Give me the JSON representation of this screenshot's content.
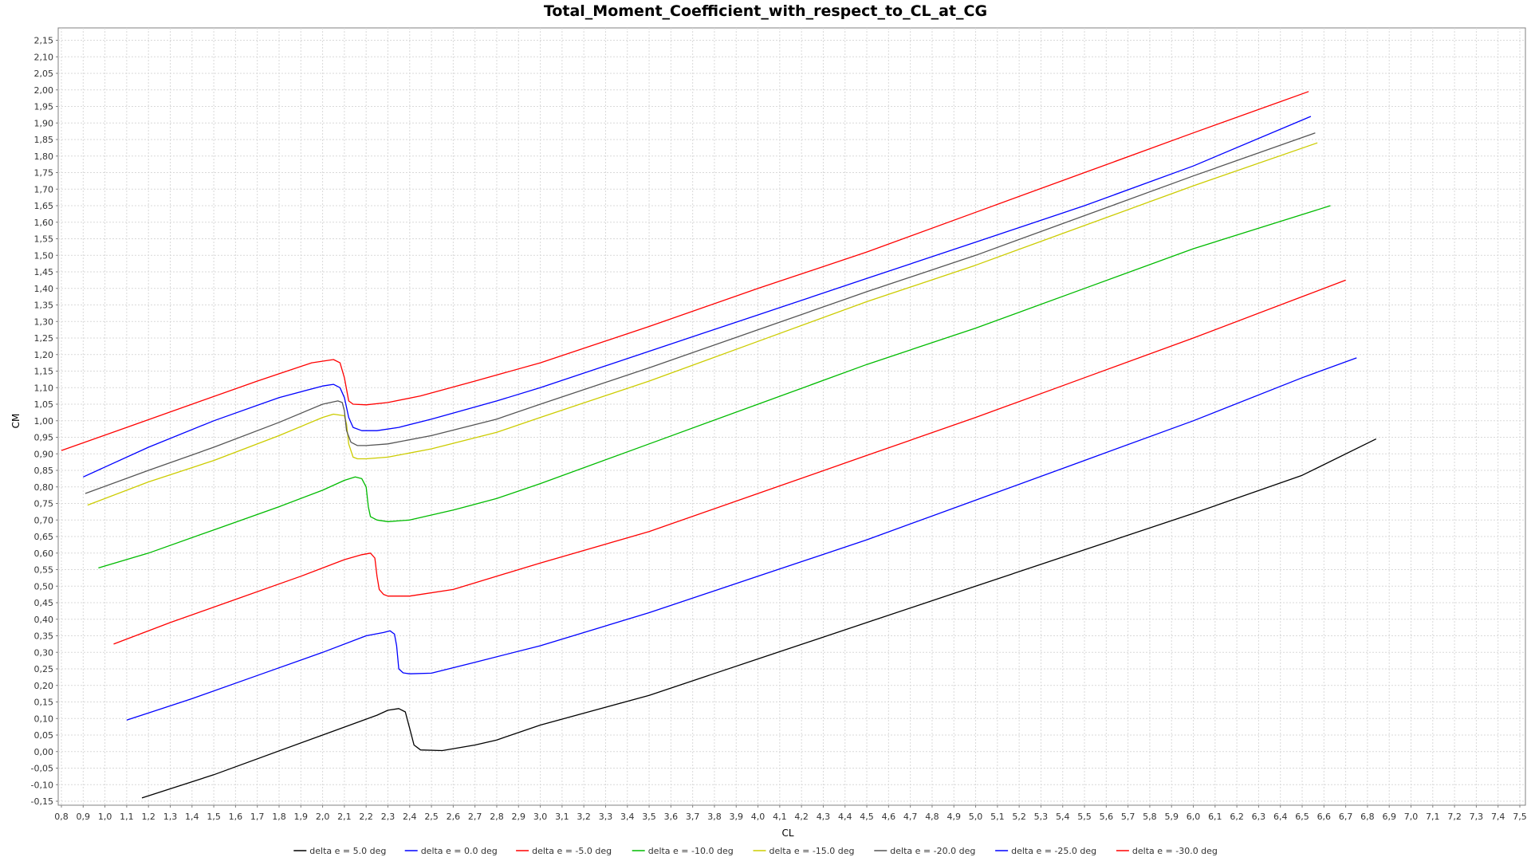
{
  "chart_data": {
    "type": "line",
    "title": "Total_Moment_Coefficient_with_respect_to_CL_at_CG",
    "xlabel": "CL",
    "ylabel": "CM",
    "xlim": [
      0.8,
      7.5
    ],
    "ylim": [
      -0.15,
      2.2
    ],
    "x_ticks": [
      "0,8",
      "0,9",
      "1,0",
      "1,1",
      "1,2",
      "1,3",
      "1,4",
      "1,5",
      "1,6",
      "1,7",
      "1,8",
      "1,9",
      "2,0",
      "2,1",
      "2,2",
      "2,3",
      "2,4",
      "2,5",
      "2,6",
      "2,7",
      "2,8",
      "2,9",
      "3,0",
      "3,1",
      "3,2",
      "3,3",
      "3,4",
      "3,5",
      "3,6",
      "3,7",
      "3,8",
      "3,9",
      "4,0",
      "4,1",
      "4,2",
      "4,3",
      "4,4",
      "4,5",
      "4,6",
      "4,7",
      "4,8",
      "4,9",
      "5,0",
      "5,1",
      "5,2",
      "5,3",
      "5,4",
      "5,5",
      "5,6",
      "5,7",
      "5,8",
      "5,9",
      "6,0",
      "6,1",
      "6,2",
      "6,3",
      "6,4",
      "6,5",
      "6,6",
      "6,7",
      "6,8",
      "6,9",
      "7,0",
      "7,1",
      "7,2",
      "7,3",
      "7,4",
      "7,5"
    ],
    "y_ticks": [
      "-0,15",
      "-0,10",
      "-0,05",
      "0,00",
      "0,05",
      "0,10",
      "0,15",
      "0,20",
      "0,25",
      "0,30",
      "0,35",
      "0,40",
      "0,45",
      "0,50",
      "0,55",
      "0,60",
      "0,65",
      "0,70",
      "0,75",
      "0,80",
      "0,85",
      "0,90",
      "0,95",
      "1,00",
      "1,05",
      "1,10",
      "1,15",
      "1,20",
      "1,25",
      "1,30",
      "1,35",
      "1,40",
      "1,45",
      "1,50",
      "1,55",
      "1,60",
      "1,65",
      "1,70",
      "1,75",
      "1,80",
      "1,85",
      "1,90",
      "1,95",
      "2,00",
      "2,05",
      "2,10",
      "2,15"
    ],
    "grid": true,
    "legend_position": "bottom",
    "series": [
      {
        "name": "delta e = 5.0 deg",
        "color": "#000000",
        "x": [
          1.17,
          1.5,
          2.0,
          2.25,
          2.3,
          2.35,
          2.38,
          2.4,
          2.42,
          2.45,
          2.55,
          2.7,
          2.8,
          3.0,
          3.5,
          4.0,
          4.5,
          5.0,
          5.5,
          6.0,
          6.5,
          6.84
        ],
        "y": [
          -0.14,
          -0.07,
          0.05,
          0.11,
          0.125,
          0.13,
          0.12,
          0.07,
          0.02,
          0.005,
          0.003,
          0.02,
          0.035,
          0.08,
          0.17,
          0.28,
          0.39,
          0.5,
          0.61,
          0.72,
          0.835,
          0.945
        ]
      },
      {
        "name": "delta e = 0.0 deg",
        "color": "#0000ff",
        "x": [
          0.9,
          1.2,
          1.5,
          1.8,
          2.0,
          2.05,
          2.08,
          2.1,
          2.12,
          2.14,
          2.18,
          2.25,
          2.35,
          2.5,
          2.8,
          3.0,
          3.5,
          4.0,
          4.5,
          5.0,
          5.5,
          6.0,
          6.54
        ],
        "y": [
          0.83,
          0.92,
          1.0,
          1.07,
          1.105,
          1.11,
          1.1,
          1.07,
          1.01,
          0.98,
          0.97,
          0.97,
          0.98,
          1.005,
          1.06,
          1.1,
          1.21,
          1.32,
          1.43,
          1.54,
          1.65,
          1.77,
          1.92
        ]
      },
      {
        "name": "delta e = -5.0 deg",
        "color": "#ff0000",
        "x": [
          0.8,
          1.1,
          1.4,
          1.7,
          1.95,
          2.05,
          2.08,
          2.1,
          2.12,
          2.14,
          2.2,
          2.3,
          2.45,
          2.7,
          3.0,
          3.5,
          4.0,
          4.5,
          5.0,
          5.5,
          6.0,
          6.53
        ],
        "y": [
          0.91,
          0.98,
          1.05,
          1.12,
          1.175,
          1.185,
          1.175,
          1.13,
          1.06,
          1.05,
          1.048,
          1.055,
          1.075,
          1.12,
          1.175,
          1.285,
          1.4,
          1.51,
          1.63,
          1.75,
          1.87,
          1.995
        ]
      },
      {
        "name": "delta e = -10.0 deg",
        "color": "#00bb00",
        "x": [
          0.97,
          1.2,
          1.5,
          1.8,
          2.0,
          2.1,
          2.15,
          2.18,
          2.2,
          2.21,
          2.22,
          2.25,
          2.3,
          2.4,
          2.6,
          2.8,
          3.0,
          3.5,
          4.0,
          4.5,
          5.0,
          5.5,
          6.0,
          6.63
        ],
        "y": [
          0.555,
          0.6,
          0.67,
          0.74,
          0.79,
          0.82,
          0.83,
          0.825,
          0.8,
          0.74,
          0.71,
          0.7,
          0.695,
          0.7,
          0.73,
          0.765,
          0.81,
          0.93,
          1.05,
          1.17,
          1.28,
          1.4,
          1.52,
          1.65
        ]
      },
      {
        "name": "delta e = -15.0 deg",
        "color": "#cccc00",
        "x": [
          0.92,
          1.2,
          1.5,
          1.8,
          2.0,
          2.05,
          2.1,
          2.11,
          2.12,
          2.14,
          2.16,
          2.2,
          2.3,
          2.5,
          2.8,
          3.0,
          3.5,
          4.0,
          4.5,
          5.0,
          5.5,
          6.0,
          6.57
        ],
        "y": [
          0.745,
          0.815,
          0.88,
          0.955,
          1.01,
          1.02,
          1.015,
          0.99,
          0.93,
          0.89,
          0.885,
          0.885,
          0.89,
          0.915,
          0.965,
          1.01,
          1.12,
          1.24,
          1.36,
          1.47,
          1.59,
          1.71,
          1.84
        ]
      },
      {
        "name": "delta e = -20.0 deg",
        "color": "#555555",
        "x": [
          0.91,
          1.2,
          1.5,
          1.8,
          2.0,
          2.07,
          2.09,
          2.1,
          2.11,
          2.13,
          2.16,
          2.2,
          2.3,
          2.5,
          2.8,
          3.0,
          3.5,
          4.0,
          4.5,
          5.0,
          5.5,
          6.0,
          6.56
        ],
        "y": [
          0.78,
          0.85,
          0.92,
          0.995,
          1.05,
          1.06,
          1.055,
          1.03,
          0.97,
          0.935,
          0.925,
          0.925,
          0.93,
          0.955,
          1.005,
          1.05,
          1.16,
          1.275,
          1.39,
          1.5,
          1.62,
          1.74,
          1.87
        ]
      },
      {
        "name": "delta e = -25.0 deg",
        "color": "#0000ff",
        "x": [
          1.1,
          1.4,
          1.7,
          2.0,
          2.2,
          2.28,
          2.31,
          2.33,
          2.34,
          2.35,
          2.37,
          2.4,
          2.5,
          2.7,
          3.0,
          3.5,
          4.0,
          4.5,
          5.0,
          5.5,
          6.0,
          6.5,
          6.75
        ],
        "y": [
          0.095,
          0.16,
          0.23,
          0.3,
          0.35,
          0.36,
          0.365,
          0.355,
          0.32,
          0.25,
          0.238,
          0.235,
          0.237,
          0.27,
          0.32,
          0.42,
          0.53,
          0.64,
          0.76,
          0.88,
          1.0,
          1.13,
          1.19
        ]
      },
      {
        "name": "delta e = -30.0 deg",
        "color": "#ff0000",
        "x": [
          1.04,
          1.3,
          1.6,
          1.9,
          2.1,
          2.18,
          2.22,
          2.24,
          2.25,
          2.26,
          2.28,
          2.3,
          2.4,
          2.6,
          2.9,
          3.0,
          3.5,
          4.0,
          4.5,
          5.0,
          5.5,
          6.0,
          6.5,
          6.7
        ],
        "y": [
          0.325,
          0.39,
          0.46,
          0.53,
          0.58,
          0.595,
          0.6,
          0.585,
          0.53,
          0.49,
          0.475,
          0.47,
          0.47,
          0.49,
          0.55,
          0.57,
          0.665,
          0.78,
          0.895,
          1.01,
          1.13,
          1.25,
          1.375,
          1.425
        ]
      }
    ]
  }
}
